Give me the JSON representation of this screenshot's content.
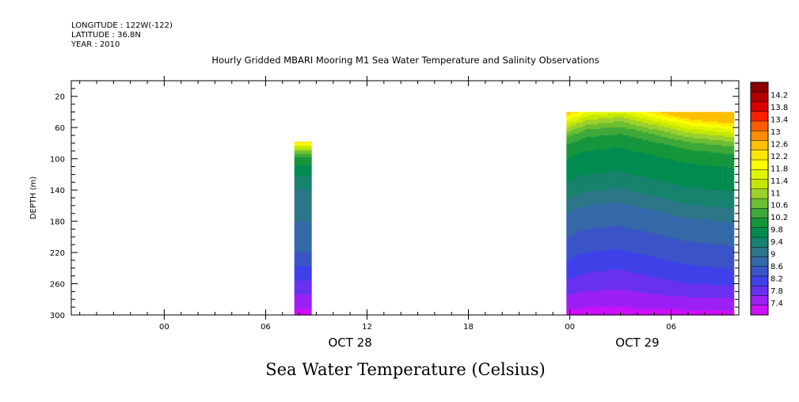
{
  "header": {
    "longitude": "LONGITUDE : 122W(-122)",
    "latitude": "LATITUDE : 36.8N",
    "year": "YEAR : 2010"
  },
  "chart_data": {
    "type": "heatmap",
    "title": "Hourly Gridded MBARI Mooring M1 Sea Water Temperature and Salinity Observations",
    "subtitle": "Sea Water Temperature (Celsius)",
    "ylabel": "DEPTH (m)",
    "xlabel": "",
    "y_axis": {
      "range": [
        300,
        0
      ],
      "inverted": true,
      "ticks": [
        20,
        60,
        100,
        140,
        180,
        220,
        260,
        300
      ]
    },
    "x_axis": {
      "range_hours_from_oct28_00": [
        -5.5,
        34
      ],
      "ticks": [
        {
          "t": 0,
          "label": "00"
        },
        {
          "t": 6,
          "label": "06"
        },
        {
          "t": 12,
          "label": "12"
        },
        {
          "t": 18,
          "label": "18"
        },
        {
          "t": 24,
          "label": "00"
        },
        {
          "t": 30,
          "label": "06"
        }
      ],
      "date_labels": [
        {
          "t": 11,
          "label": "OCT 28"
        },
        {
          "t": 28,
          "label": "OCT 29"
        }
      ]
    },
    "colorbar": {
      "labels": [
        "14.2",
        "13.8",
        "13.4",
        "13",
        "12.6",
        "12.2",
        "11.8",
        "11.4",
        "11",
        "10.6",
        "10.2",
        "9.8",
        "9.4",
        "9",
        "8.6",
        "8.2",
        "7.8",
        "7.4"
      ],
      "colors": [
        "#8b0000",
        "#b30000",
        "#d80000",
        "#ff2000",
        "#ff5a00",
        "#ff8c00",
        "#ffbe00",
        "#ffe600",
        "#ffff00",
        "#e1f500",
        "#c4e800",
        "#9cd12e",
        "#6cbe32",
        "#3ea83a",
        "#16963c",
        "#008c50",
        "#17826e",
        "#2c7688",
        "#3468a8",
        "#3a54c8",
        "#4040e8",
        "#6a30f0",
        "#9b20f4",
        "#cc10f8"
      ],
      "range": [
        7.2,
        14.4
      ]
    },
    "data_blocks": [
      {
        "name": "block1",
        "t_range": [
          7.7,
          8.7
        ],
        "depth_range": [
          78,
          300
        ],
        "profile": [
          [
            78,
            12.3
          ],
          [
            85,
            11.3
          ],
          [
            95,
            10.3
          ],
          [
            110,
            9.8
          ],
          [
            140,
            9.3
          ],
          [
            180,
            9.0
          ],
          [
            220,
            8.7
          ],
          [
            250,
            8.2
          ],
          [
            270,
            7.9
          ],
          [
            285,
            7.6
          ],
          [
            300,
            7.4
          ]
        ]
      },
      {
        "name": "block2",
        "t_range": [
          23.8,
          33.7
        ],
        "depth_range": [
          40,
          300
        ],
        "profile": [
          [
            40,
            12.6
          ],
          [
            44,
            12.2
          ],
          [
            52,
            11.6
          ],
          [
            62,
            11.0
          ],
          [
            75,
            10.4
          ],
          [
            90,
            10.0
          ],
          [
            110,
            9.8
          ],
          [
            140,
            9.5
          ],
          [
            170,
            9.0
          ],
          [
            200,
            8.7
          ],
          [
            240,
            8.3
          ],
          [
            270,
            7.9
          ],
          [
            285,
            7.6
          ],
          [
            300,
            7.4
          ]
        ],
        "time_depth_shift": [
          [
            23.8,
            0
          ],
          [
            25,
            -10
          ],
          [
            27,
            -14
          ],
          [
            29,
            -4
          ],
          [
            31,
            6
          ],
          [
            33.7,
            12
          ]
        ]
      }
    ]
  }
}
